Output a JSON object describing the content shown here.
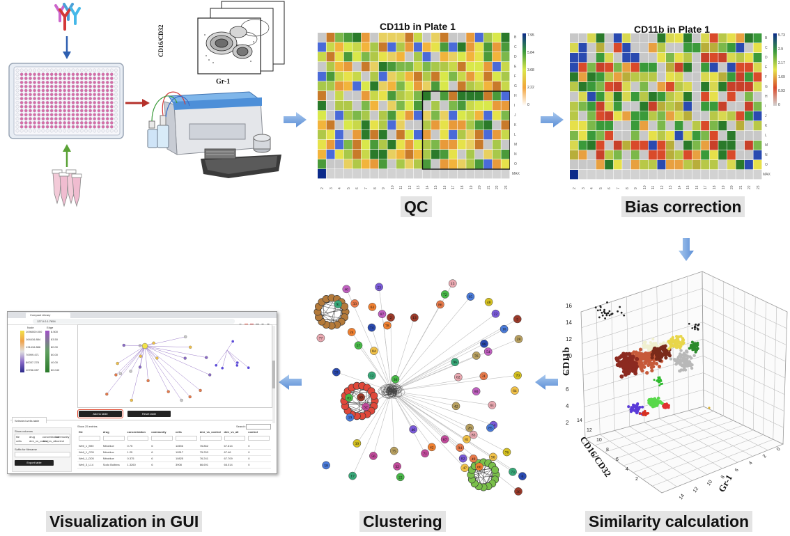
{
  "stages": {
    "qc": "QC",
    "bias_correction": "Bias correction",
    "similarity": "Similarity calculation",
    "clustering": "Clustering",
    "visualization": "Visualization in GUI"
  },
  "flow_plot": {
    "y_label": "CD16/CD32",
    "x_label": "Gr-1"
  },
  "heatmap_qc": {
    "title": "CD11b in Plate 1",
    "colorbar_ticks": [
      "7.95",
      "5.84",
      "3.68",
      "2.22",
      "0"
    ],
    "row_labels": [
      "B",
      "C",
      "D",
      "E",
      "F",
      "G",
      "H",
      "I",
      "J",
      "K",
      "L",
      "M",
      "N",
      "O",
      "MAX"
    ],
    "col_labels": [
      "2",
      "3",
      "4",
      "5",
      "6",
      "7",
      "8",
      "9",
      "10",
      "11",
      "12",
      "13",
      "14",
      "15",
      "16",
      "17",
      "18",
      "19",
      "20",
      "21",
      "22",
      "23"
    ]
  },
  "heatmap_bias": {
    "title": "CD11b in Plate 1",
    "colorbar_ticks": [
      "5.73",
      "2.9",
      "2.17",
      "1.69",
      "0.93",
      "0"
    ],
    "row_labels": [
      "B",
      "C",
      "D",
      "E",
      "F",
      "G",
      "H",
      "I",
      "J",
      "K",
      "L",
      "M",
      "N",
      "O",
      "MAX"
    ],
    "col_labels": [
      "2",
      "3",
      "4",
      "5",
      "6",
      "7",
      "8",
      "9",
      "10",
      "11",
      "12",
      "13",
      "14",
      "15",
      "16",
      "17",
      "18",
      "19",
      "20",
      "21",
      "22",
      "23"
    ]
  },
  "scatter3d": {
    "z_label": "CD11b",
    "x_label": "Gr-1",
    "y_label": "CD16/CD32",
    "z_ticks": [
      "16",
      "14",
      "12",
      "10",
      "8",
      "6",
      "4",
      "2"
    ],
    "x_ticks": [
      "14",
      "12",
      "10",
      "8",
      "6",
      "4",
      "2",
      "0"
    ],
    "y_ticks": [
      "14",
      "12",
      "10",
      "8",
      "6",
      "4",
      "2"
    ]
  },
  "network": {
    "node_labels": [
      "90",
      "94",
      "71",
      "22",
      "19",
      "22",
      "69",
      "62",
      "42",
      "96",
      "76",
      "88",
      "70",
      "40",
      "64",
      "49",
      "52",
      "14",
      "16",
      "72",
      "2",
      "83",
      "63",
      "17",
      "28",
      "59",
      "39",
      "87",
      "47",
      "33",
      "32",
      "82",
      "95",
      "83",
      "36",
      "77",
      "60",
      "73",
      "75",
      "74",
      "76",
      "80",
      "84",
      "31",
      "56",
      "46",
      "85",
      "57",
      "5",
      "61",
      "78",
      "12",
      "26",
      "6",
      "48",
      "54",
      "81",
      "86",
      "67",
      "23",
      "58",
      "36",
      "13",
      "15",
      "24",
      "91",
      "42"
    ]
  },
  "gui": {
    "tab_title": "Compact Library",
    "address": "127.0.0.1:7654",
    "legend_node": "Node",
    "legend_edge": "Edge",
    "legend_values": [
      "1096000.000",
      "164416.884",
      "131416.886",
      "70999.471",
      "80037.278",
      "10786.087"
    ],
    "edge_values": [
      "8.500",
      "83.50",
      "80.00",
      "60.00",
      "40.00",
      "80.040"
    ],
    "add_to_table": "Add to table",
    "reset_table": "Reset table",
    "selected_tab": "Selected wells table",
    "show_columns": "Show columns",
    "column_chips": [
      "file",
      "drug",
      "concentration",
      "community",
      "cells",
      "dmr_vs_control",
      "dmr_vs_all",
      "control"
    ],
    "suffix_label": "Suffix for filename",
    "export_btn": "Export table",
    "show_entries": "Show 25 entries",
    "search_label": "Search:",
    "table_headers": [
      "file",
      "drug",
      "concentration",
      "community",
      "cells",
      "dmr_vs_control",
      "dmr_vs_all",
      "control"
    ],
    "rows": [
      [
        "Well_1_B90",
        "Nitroblue",
        "0.75",
        "6",
        "11556",
        "76.862",
        "67.614",
        "0"
      ],
      [
        "Well_1_C05",
        "Nitroblue",
        "1.25",
        "6",
        "10517",
        "75.253",
        "67.46",
        "0"
      ],
      [
        "Well_1_D05",
        "Nitroblue",
        "0.375",
        "6",
        "10825",
        "76.241",
        "67.709",
        "0"
      ],
      [
        "Well_3_L14",
        "Sodo Bulbina",
        "1.3260",
        "6",
        "3908",
        "66.691",
        "66.014",
        "0"
      ]
    ]
  },
  "colors": {
    "arrow": "#6f9fd8",
    "red_arrow": "#b5312a",
    "green_arrow": "#5aa236"
  }
}
